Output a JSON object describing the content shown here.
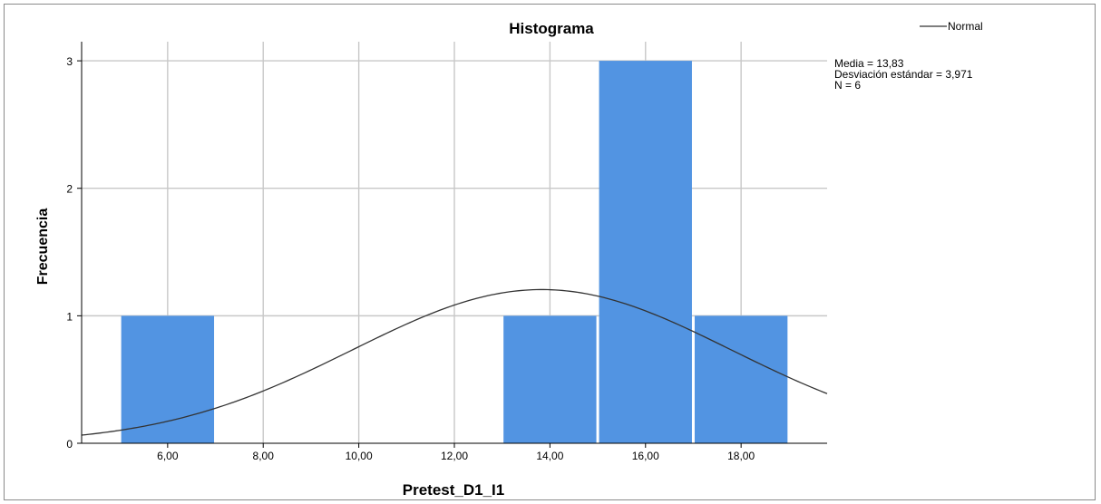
{
  "chart_data": {
    "type": "bar",
    "title": "Histograma",
    "xlabel": "Pretest_D1_I1",
    "ylabel": "Frecuencia",
    "xlim": [
      4.2,
      19.8
    ],
    "ylim": [
      0,
      3.15
    ],
    "x_ticks": [
      6,
      8,
      10,
      12,
      14,
      16,
      18
    ],
    "x_tick_labels": [
      "6,00",
      "8,00",
      "10,00",
      "12,00",
      "14,00",
      "16,00",
      "18,00"
    ],
    "y_ticks": [
      0,
      1,
      2,
      3
    ],
    "y_tick_labels": [
      "0",
      "1",
      "2",
      "3"
    ],
    "bins": [
      {
        "start": 5,
        "end": 7,
        "count": 1
      },
      {
        "start": 7,
        "end": 9,
        "count": 0
      },
      {
        "start": 9,
        "end": 11,
        "count": 0
      },
      {
        "start": 11,
        "end": 13,
        "count": 0
      },
      {
        "start": 13,
        "end": 15,
        "count": 1
      },
      {
        "start": 15,
        "end": 17,
        "count": 3
      },
      {
        "start": 17,
        "end": 19,
        "count": 1
      }
    ],
    "normal_curve": {
      "name": "Normal",
      "mean": 13.83,
      "sd": 3.971,
      "n": 6,
      "bin_width": 2
    },
    "legend": {
      "label": "Normal",
      "position": "top-right"
    },
    "grid": true,
    "colors": {
      "bar": "#5294e2",
      "curve": "#333333",
      "grid": "#c8c8c8",
      "axis": "#000000"
    }
  },
  "stats": {
    "mean": "Media = 13,83",
    "sd": "Desviación estándar = 3,971",
    "n": "N = 6"
  }
}
